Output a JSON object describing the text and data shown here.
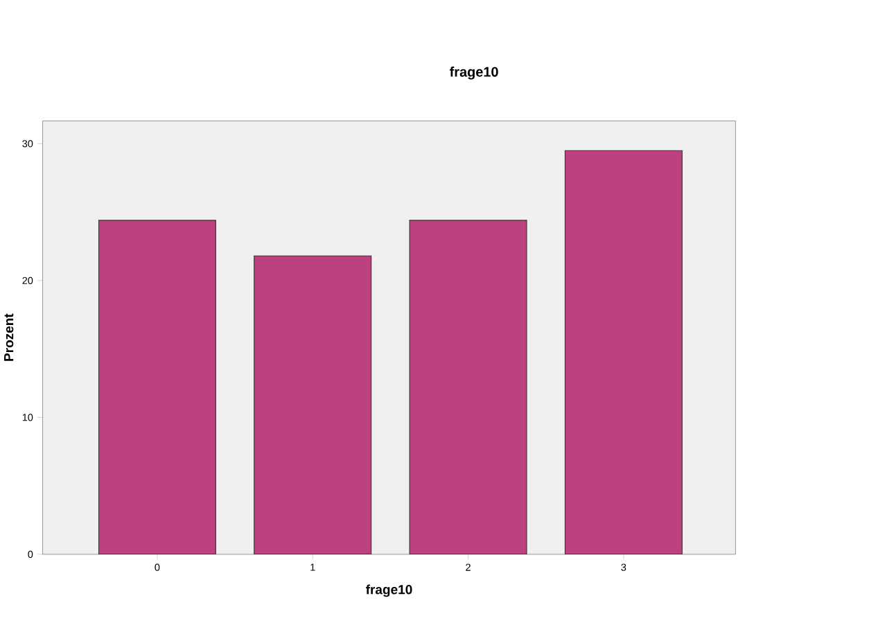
{
  "chart_data": {
    "type": "bar",
    "title": "frage10",
    "xlabel": "frage10",
    "ylabel": "Prozent",
    "categories": [
      "0",
      "1",
      "2",
      "3"
    ],
    "values": [
      24.4,
      21.8,
      24.4,
      29.5
    ],
    "color": "#bc417e",
    "ylim": [
      0,
      31.66
    ],
    "yticks": [
      0,
      10,
      20,
      30
    ],
    "grid": false
  }
}
